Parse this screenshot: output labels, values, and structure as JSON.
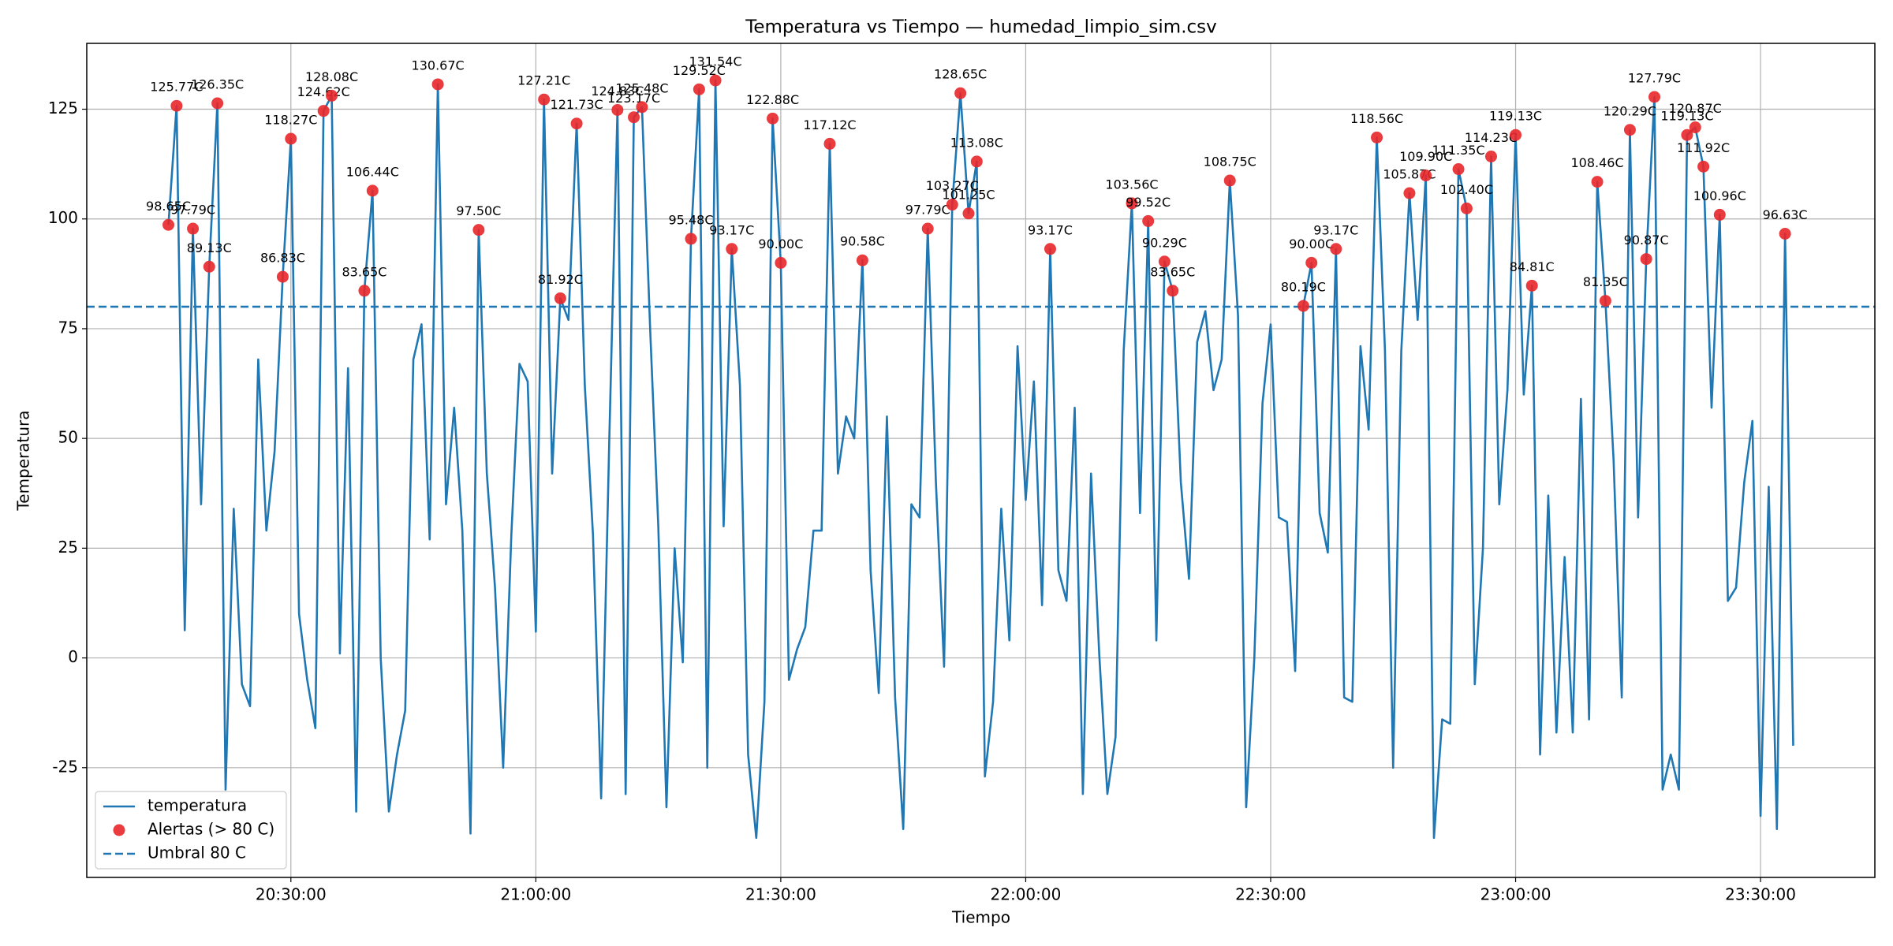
{
  "chart_data": {
    "type": "line",
    "title": "Temperatura vs Tiempo — humedad_limpio_sim.csv",
    "xlabel": "Tiempo",
    "ylabel": "Temperatura",
    "x": [
      "20:15:00",
      "20:16:00",
      "20:17:00",
      "20:18:00",
      "20:19:00",
      "20:20:00",
      "20:21:00",
      "20:22:00",
      "20:23:00",
      "20:24:00",
      "20:25:00",
      "20:26:00",
      "20:27:00",
      "20:28:00",
      "20:29:00",
      "20:30:00",
      "20:31:00",
      "20:32:00",
      "20:33:00",
      "20:34:00",
      "20:35:00",
      "20:36:00",
      "20:37:00",
      "20:38:00",
      "20:39:00",
      "20:40:00",
      "20:41:00",
      "20:42:00",
      "20:43:00",
      "20:44:00",
      "20:45:00",
      "20:46:00",
      "20:47:00",
      "20:48:00",
      "20:49:00",
      "20:50:00",
      "20:51:00",
      "20:52:00",
      "20:53:00",
      "20:54:00",
      "20:55:00",
      "20:56:00",
      "20:57:00",
      "20:58:00",
      "20:59:00",
      "21:00:00",
      "21:01:00",
      "21:02:00",
      "21:03:00",
      "21:04:00",
      "21:05:00",
      "21:06:00",
      "21:07:00",
      "21:08:00",
      "21:09:00",
      "21:10:00",
      "21:11:00",
      "21:12:00",
      "21:13:00",
      "21:14:00",
      "21:15:00",
      "21:16:00",
      "21:17:00",
      "21:18:00",
      "21:19:00",
      "21:20:00",
      "21:21:00",
      "21:22:00",
      "21:23:00",
      "21:24:00",
      "21:25:00",
      "21:26:00",
      "21:27:00",
      "21:28:00",
      "21:29:00",
      "21:30:00",
      "21:31:00",
      "21:32:00",
      "21:33:00",
      "21:34:00",
      "21:35:00",
      "21:36:00",
      "21:37:00",
      "21:38:00",
      "21:39:00",
      "21:40:00",
      "21:41:00",
      "21:42:00",
      "21:43:00",
      "21:44:00",
      "21:45:00",
      "21:46:00",
      "21:47:00",
      "21:48:00",
      "21:49:00",
      "21:50:00",
      "21:51:00",
      "21:52:00",
      "21:53:00",
      "21:54:00",
      "21:55:00",
      "21:56:00",
      "21:57:00",
      "21:58:00",
      "21:59:00",
      "22:00:00",
      "22:01:00",
      "22:02:00",
      "22:03:00",
      "22:04:00",
      "22:05:00",
      "22:06:00",
      "22:07:00",
      "22:08:00",
      "22:09:00",
      "22:10:00",
      "22:11:00",
      "22:12:00",
      "22:13:00",
      "22:14:00",
      "22:15:00",
      "22:16:00",
      "22:17:00",
      "22:18:00",
      "22:19:00",
      "22:20:00",
      "22:21:00",
      "22:22:00",
      "22:23:00",
      "22:24:00",
      "22:25:00",
      "22:26:00",
      "22:27:00",
      "22:28:00",
      "22:29:00",
      "22:30:00",
      "22:31:00",
      "22:32:00",
      "22:33:00",
      "22:34:00",
      "22:35:00",
      "22:36:00",
      "22:37:00",
      "22:38:00",
      "22:39:00",
      "22:40:00",
      "22:41:00",
      "22:42:00",
      "22:43:00",
      "22:44:00",
      "22:45:00",
      "22:46:00",
      "22:47:00",
      "22:48:00",
      "22:49:00",
      "22:50:00",
      "22:51:00",
      "22:52:00",
      "22:53:00",
      "22:54:00",
      "22:55:00",
      "22:56:00",
      "22:57:00",
      "22:58:00",
      "22:59:00",
      "23:00:00",
      "23:01:00",
      "23:02:00",
      "23:03:00",
      "23:04:00",
      "23:05:00",
      "23:06:00",
      "23:07:00",
      "23:08:00",
      "23:09:00",
      "23:10:00",
      "23:11:00",
      "23:12:00",
      "23:13:00",
      "23:14:00",
      "23:15:00",
      "23:16:00",
      "23:17:00",
      "23:18:00",
      "23:19:00",
      "23:20:00",
      "23:21:00",
      "23:22:00",
      "23:23:00",
      "23:24:00",
      "23:25:00",
      "23:26:00",
      "23:27:00",
      "23:28:00",
      "23:29:00",
      "23:30:00",
      "23:31:00",
      "23:32:00",
      "23:33:00",
      "23:34:00"
    ],
    "series": [
      {
        "name": "temperatura",
        "color": "#1f77b4",
        "values": [
          98.65,
          125.77,
          6.3,
          97.79,
          35,
          89.13,
          126.35,
          -30,
          34,
          -6,
          -11,
          68,
          29,
          47,
          86.83,
          118.27,
          10,
          -5,
          -16,
          124.62,
          128.08,
          1,
          66,
          -35,
          83.65,
          106.44,
          0,
          -35,
          -22,
          -12,
          68,
          76,
          27,
          130.67,
          35,
          57,
          29,
          -40,
          97.5,
          42,
          16,
          -25,
          28,
          67,
          63,
          6,
          127.21,
          42,
          81.92,
          77,
          121.73,
          62,
          28,
          -32,
          50,
          124.83,
          -31,
          123.17,
          125.48,
          75,
          30,
          -34,
          25,
          -1,
          95.48,
          129.52,
          -25,
          131.54,
          30,
          93.17,
          62,
          -22,
          -41,
          -10,
          122.88,
          90,
          -5,
          2,
          7,
          29,
          29,
          117.12,
          42,
          55,
          50,
          90.58,
          20,
          -8,
          55,
          -9,
          -39,
          35,
          32,
          97.79,
          40,
          -2,
          103.27,
          128.65,
          101.25,
          113.08,
          -27,
          -10,
          34,
          4,
          71,
          36,
          63,
          12,
          93.17,
          20,
          13,
          57,
          -31,
          42,
          1,
          -31,
          -18,
          70,
          103.56,
          33,
          99.52,
          4,
          90.29,
          83.65,
          40,
          18,
          72,
          79,
          61,
          68,
          108.75,
          78,
          -34,
          0,
          58,
          76,
          32,
          31,
          -3,
          80.19,
          90,
          33,
          24,
          93.17,
          -9,
          -10,
          71,
          52,
          118.56,
          70,
          -25,
          70,
          105.87,
          77,
          109.9,
          -41,
          -14,
          -15,
          111.35,
          102.4,
          -6,
          25,
          114.23,
          35,
          61,
          119.13,
          60,
          84.81,
          -22,
          37,
          -17,
          23,
          -17,
          59,
          -14,
          108.46,
          81.35,
          45,
          -9,
          120.29,
          32,
          90.87,
          127.79,
          -30,
          -22,
          -30,
          119.13,
          120.87,
          111.92,
          57,
          100.96,
          13,
          16,
          40,
          54,
          -36,
          39,
          -39,
          96.63,
          -20
        ]
      }
    ],
    "alerts": {
      "name": "Alertas (> 80 C)",
      "color": "#e8262a",
      "x": [
        "20:15:00",
        "20:16:00",
        "20:18:00",
        "20:20:00",
        "20:21:00",
        "20:29:00",
        "20:30:00",
        "20:34:00",
        "20:35:00",
        "20:39:00",
        "20:40:00",
        "20:48:00",
        "20:53:00",
        "21:01:00",
        "21:03:00",
        "21:05:00",
        "21:10:00",
        "21:12:00",
        "21:13:00",
        "21:19:00",
        "21:20:00",
        "21:22:00",
        "21:24:00",
        "21:29:00",
        "21:30:00",
        "21:36:00",
        "21:40:00",
        "21:48:00",
        "21:51:00",
        "21:52:00",
        "21:53:00",
        "21:54:00",
        "22:03:00",
        "22:13:00",
        "22:15:00",
        "22:17:00",
        "22:18:00",
        "22:25:00",
        "22:34:00",
        "22:35:00",
        "22:38:00",
        "22:43:00",
        "22:47:00",
        "22:49:00",
        "22:53:00",
        "22:54:00",
        "22:57:00",
        "23:00:00",
        "23:02:00",
        "23:10:00",
        "23:11:00",
        "23:14:00",
        "23:16:00",
        "23:17:00",
        "23:21:00",
        "23:22:00",
        "23:23:00",
        "23:25:00",
        "23:33:00"
      ],
      "values": [
        98.65,
        125.77,
        97.79,
        89.13,
        126.35,
        86.83,
        118.27,
        124.62,
        128.08,
        83.65,
        106.44,
        130.67,
        97.5,
        127.21,
        81.92,
        121.73,
        124.83,
        123.17,
        125.48,
        95.48,
        129.52,
        131.54,
        93.17,
        122.88,
        90,
        117.12,
        90.58,
        97.79,
        103.27,
        128.65,
        101.25,
        113.08,
        93.17,
        103.56,
        99.52,
        90.29,
        83.65,
        108.75,
        80.19,
        90,
        93.17,
        118.56,
        105.87,
        109.9,
        111.35,
        102.4,
        114.23,
        119.13,
        84.81,
        108.46,
        81.35,
        120.29,
        90.87,
        127.79,
        119.13,
        120.87,
        111.92,
        100.96,
        96.63
      ],
      "value_labels": [
        "98.65C",
        "125.77C",
        "97.79C",
        "89.13C",
        "126.35C",
        "86.83C",
        "118.27C",
        "124.62C",
        "128.08C",
        "83.65C",
        "106.44C",
        "130.67C",
        "97.50C",
        "127.21C",
        "81.92C",
        "121.73C",
        "124.83C",
        "123.17C",
        "125.48C",
        "95.48C",
        "129.52C",
        "131.54C",
        "93.17C",
        "122.88C",
        "90.00C",
        "117.12C",
        "90.58C",
        "97.79C",
        "103.27C",
        "128.65C",
        "101.25C",
        "113.08C",
        "93.17C",
        "103.56C",
        "99.52C",
        "90.29C",
        "83.65C",
        "108.75C",
        "80.19C",
        "90.00C",
        "93.17C",
        "118.56C",
        "105.87C",
        "109.90C",
        "111.35C",
        "102.40C",
        "114.23C",
        "119.13C",
        "84.81C",
        "108.46C",
        "81.35C",
        "120.29C",
        "90.87C",
        "127.79C",
        "119.13C",
        "120.87C",
        "111.92C",
        "100.96C",
        "96.63C"
      ]
    },
    "threshold": {
      "name": "Umbral 80 C",
      "value": 80,
      "color": "#1f77b4"
    },
    "xlim": [
      "20:05:00",
      "23:44:00"
    ],
    "xticks": [
      "20:30:00",
      "21:00:00",
      "21:30:00",
      "22:00:00",
      "22:30:00",
      "23:00:00",
      "23:30:00"
    ],
    "ylim": [
      -50,
      140
    ],
    "yticks": [
      -25,
      0,
      25,
      50,
      75,
      100,
      125
    ],
    "grid": true,
    "legend": "lower left"
  }
}
